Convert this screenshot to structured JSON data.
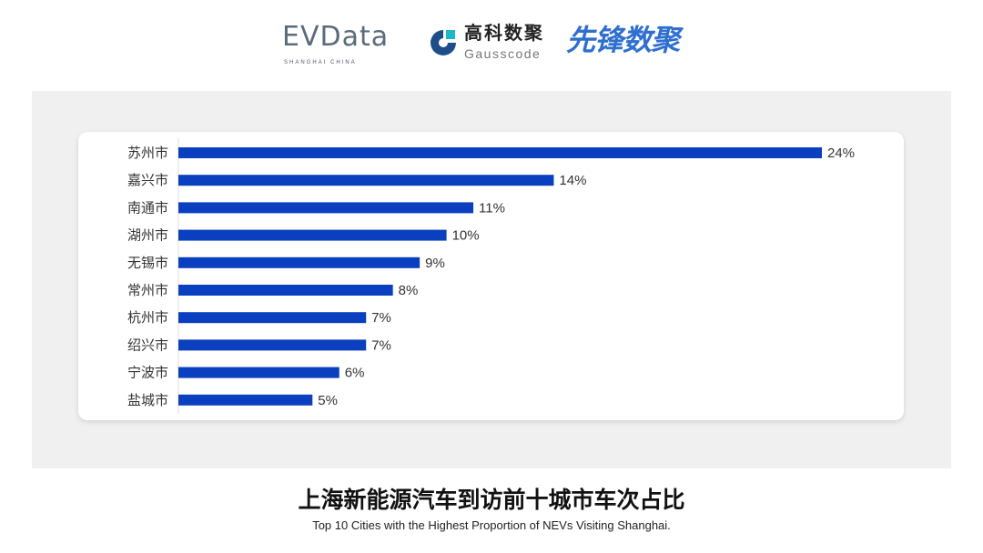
{
  "logos": {
    "evdata": "EVData",
    "evdata_sub": "SHANGHAI CHINA",
    "gausscode_cn": "高科数聚",
    "gausscode_en": "Gausscode",
    "xianfeng": "先锋数聚"
  },
  "title": "上海新能源汽车到访前十城市车次占比",
  "subtitle": "Top 10 Cities with the Highest Proportion of  NEVs Visiting Shanghai.",
  "colors": {
    "bar": "#0a3fbf",
    "panel": "#f0f0f0",
    "card": "#ffffff"
  },
  "chart_data": {
    "type": "bar",
    "orientation": "horizontal",
    "categories": [
      "苏州市",
      "嘉兴市",
      "南通市",
      "湖州市",
      "无锡市",
      "常州市",
      "杭州市",
      "绍兴市",
      "宁波市",
      "盐城市"
    ],
    "values": [
      24,
      14,
      11,
      10,
      9,
      8,
      7,
      7,
      6,
      5
    ],
    "labels": [
      "24%",
      "14%",
      "11%",
      "10%",
      "9%",
      "8%",
      "7%",
      "7%",
      "6%",
      "5%"
    ],
    "unit": "%",
    "grid": false,
    "xlim": [
      0,
      24
    ]
  }
}
